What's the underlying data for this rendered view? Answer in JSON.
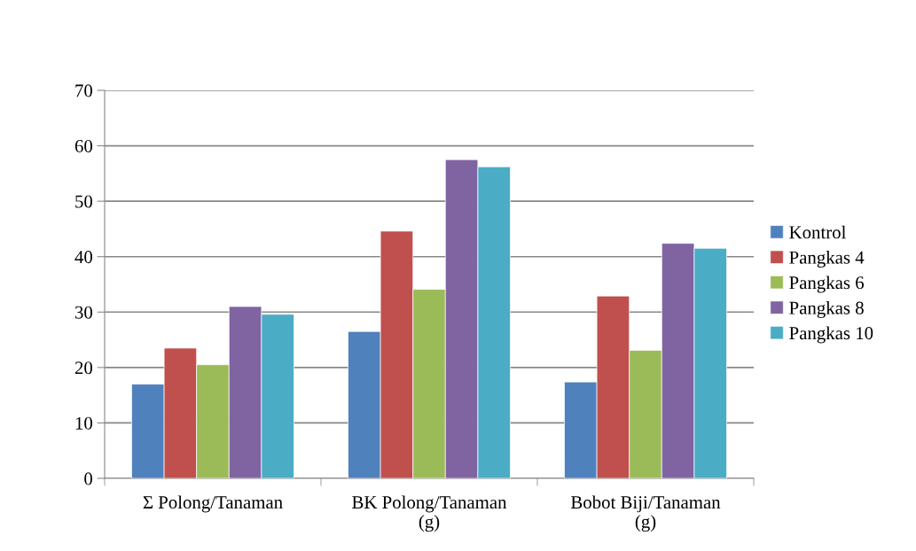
{
  "chart_data": {
    "type": "bar",
    "categories": [
      "Σ Polong/Tanaman",
      "BK Polong/Tanaman\n(g)",
      "Bobot Biji/Tanaman\n(g)"
    ],
    "series": [
      {
        "name": "Kontrol",
        "color": "#4f81bd",
        "values": [
          17.0,
          26.5,
          17.4
        ]
      },
      {
        "name": "Pangkas 4",
        "color": "#c0504d",
        "values": [
          23.5,
          44.6,
          32.9
        ]
      },
      {
        "name": "Pangkas 6",
        "color": "#9bbb59",
        "values": [
          20.5,
          34.1,
          23.1
        ]
      },
      {
        "name": "Pangkas 8",
        "color": "#8064a2",
        "values": [
          31.0,
          57.5,
          42.4
        ]
      },
      {
        "name": "Pangkas 10",
        "color": "#4bacc6",
        "values": [
          29.6,
          56.2,
          41.5
        ]
      }
    ],
    "ylim": [
      0,
      70
    ],
    "yticks": [
      0,
      10,
      20,
      30,
      40,
      50,
      60,
      70
    ],
    "grid": "y",
    "legend": "right"
  }
}
